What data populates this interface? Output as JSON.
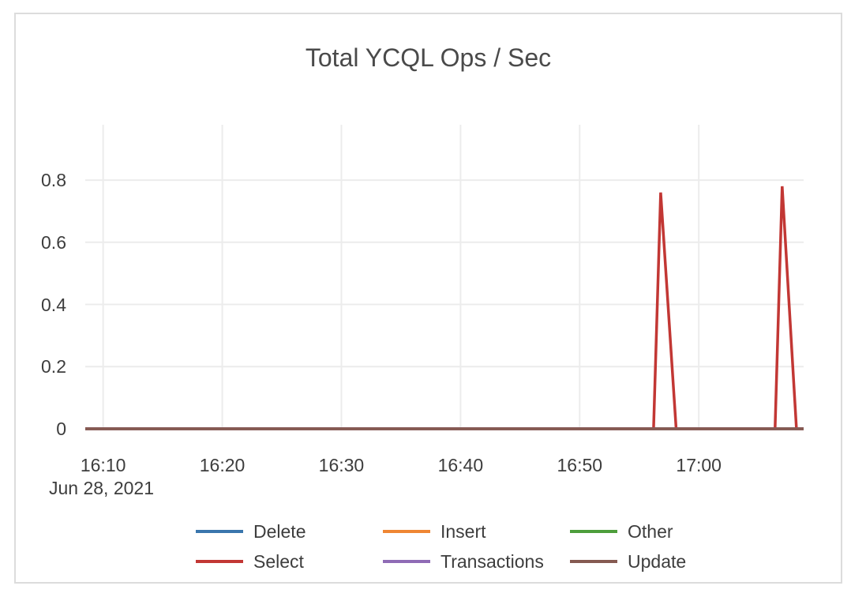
{
  "card": {
    "background": "#ffffff",
    "border_color": "#dcdcdc"
  },
  "chart_data": {
    "type": "line",
    "title": "Total YCQL Ops / Sec",
    "title_color": "#4a4a4a",
    "axis_text_color": "#3d3d3d",
    "grid_color": "#ececec",
    "grid": true,
    "legend_position": "bottom",
    "x_axis": {
      "date_label": "Jun 28, 2021",
      "x_unit": "minutes_of_day",
      "range_minutes": [
        968.5,
        1028.8
      ],
      "ticks": [
        {
          "minutes": 970,
          "label": "16:10"
        },
        {
          "minutes": 980,
          "label": "16:20"
        },
        {
          "minutes": 990,
          "label": "16:30"
        },
        {
          "minutes": 1000,
          "label": "16:40"
        },
        {
          "minutes": 1010,
          "label": "16:50"
        },
        {
          "minutes": 1020,
          "label": "17:00"
        }
      ]
    },
    "y_axis": {
      "range": [
        0,
        0.978
      ],
      "ticks": [
        {
          "value": 0,
          "label": "0"
        },
        {
          "value": 0.2,
          "label": "0.2"
        },
        {
          "value": 0.4,
          "label": "0.4"
        },
        {
          "value": 0.6,
          "label": "0.6"
        },
        {
          "value": 0.8,
          "label": "0.8"
        }
      ]
    },
    "series": [
      {
        "name": "Delete",
        "color": "#3a76ad",
        "points": [
          [
            968.5,
            0
          ],
          [
            1028.8,
            0
          ]
        ]
      },
      {
        "name": "Insert",
        "color": "#ef8633",
        "points": [
          [
            968.5,
            0
          ],
          [
            1028.8,
            0
          ]
        ]
      },
      {
        "name": "Other",
        "color": "#4d9e3c",
        "points": [
          [
            968.5,
            0
          ],
          [
            1028.8,
            0
          ]
        ]
      },
      {
        "name": "Select",
        "color": "#c23734",
        "points": [
          [
            968.5,
            0
          ],
          [
            1016.2,
            0
          ],
          [
            1016.8,
            0.76
          ],
          [
            1018.1,
            0
          ],
          [
            1026.4,
            0
          ],
          [
            1027.0,
            0.78
          ],
          [
            1028.2,
            0
          ],
          [
            1028.8,
            0
          ]
        ]
      },
      {
        "name": "Transactions",
        "color": "#8f6bb5",
        "points": [
          [
            968.5,
            0
          ],
          [
            1028.8,
            0
          ]
        ]
      },
      {
        "name": "Update",
        "color": "#855a51",
        "points": [
          [
            968.5,
            0
          ],
          [
            1028.8,
            0
          ]
        ]
      }
    ]
  }
}
